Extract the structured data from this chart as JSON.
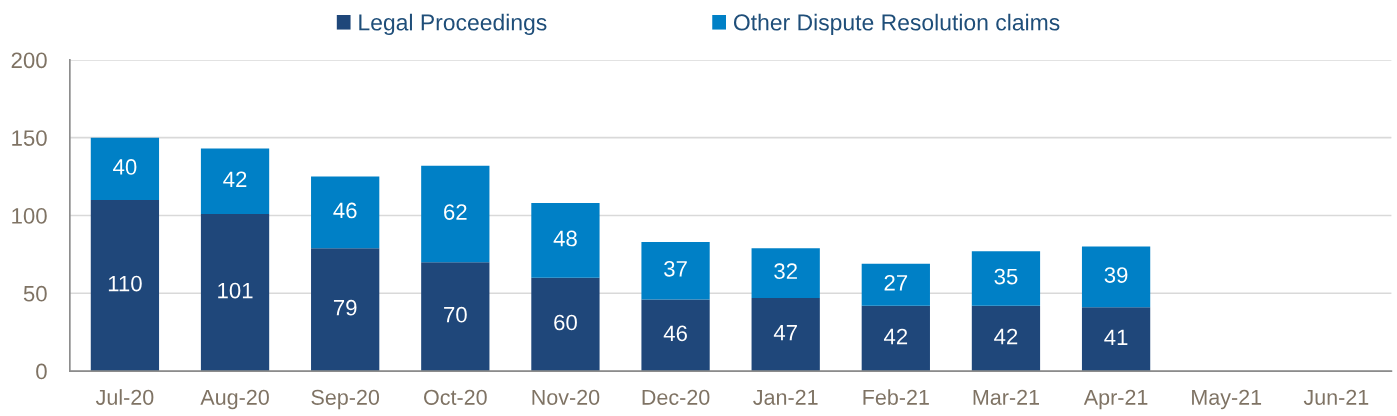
{
  "chart_data": {
    "type": "bar",
    "stacked": true,
    "categories": [
      "Jul-20",
      "Aug-20",
      "Sep-20",
      "Oct-20",
      "Nov-20",
      "Dec-20",
      "Jan-21",
      "Feb-21",
      "Mar-21",
      "Apr-21",
      "May-21",
      "Jun-21"
    ],
    "series": [
      {
        "name": "Legal Proceedings",
        "color": "#1f477a",
        "values": [
          110,
          101,
          79,
          70,
          60,
          46,
          47,
          42,
          42,
          41,
          null,
          null
        ]
      },
      {
        "name": "Other Dispute Resolution claims",
        "color": "#0080c6",
        "values": [
          40,
          42,
          46,
          62,
          48,
          37,
          32,
          27,
          35,
          39,
          null,
          null
        ]
      }
    ],
    "ylim": [
      0,
      200
    ],
    "yticks": [
      0,
      50,
      100,
      150,
      200
    ],
    "grid": "y",
    "legend": "top",
    "data_labels": true
  }
}
